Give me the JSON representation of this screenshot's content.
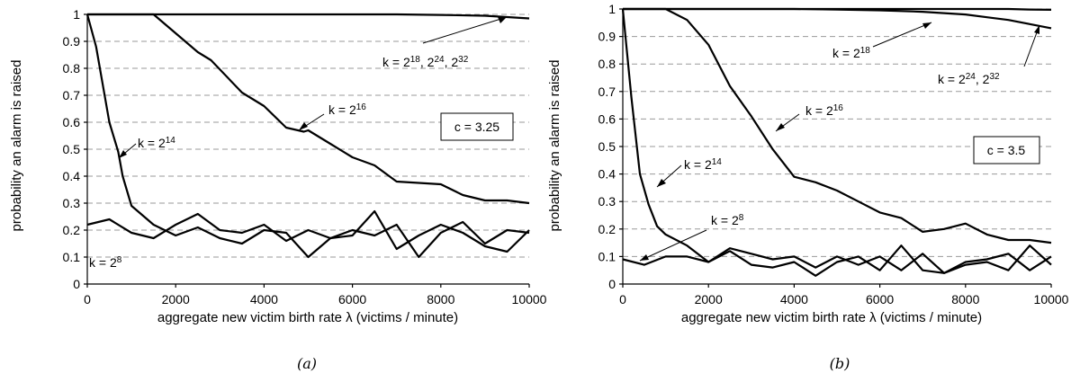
{
  "chart_data": [
    {
      "panel": "a",
      "type": "line",
      "caption": "(a)",
      "xlabel": "aggregate new victim birth rate λ (victims / minute)",
      "ylabel": "probability an alarm is raised",
      "xlim": [
        0,
        10000
      ],
      "ylim": [
        0,
        1
      ],
      "xticks": [
        "0",
        "2000",
        "4000",
        "6000",
        "8000",
        "10000"
      ],
      "yticks": [
        "0",
        "0.1",
        "0.2",
        "0.3",
        "0.4",
        "0.5",
        "0.6",
        "0.7",
        "0.8",
        "0.9",
        "1"
      ],
      "grid": "horizontal dashed",
      "box_label": "c = 3.25",
      "series": [
        {
          "name": "k = 2^18, 2^24, 2^32",
          "label_base": "k = 2",
          "label_exp": [
            "18",
            "24",
            "32"
          ],
          "x": [
            0,
            1000,
            2000,
            3000,
            4000,
            5000,
            6000,
            7000,
            8000,
            9000,
            9500,
            10000
          ],
          "y": [
            1,
            1,
            1,
            1,
            1,
            1,
            1,
            1,
            0.998,
            0.995,
            0.99,
            0.985
          ]
        },
        {
          "name": "k = 2^16",
          "label_base": "k = 2",
          "label_exp": [
            "16"
          ],
          "x": [
            0,
            1500,
            2000,
            2500,
            2800,
            3500,
            4000,
            4500,
            4900,
            5000,
            5500,
            6000,
            6500,
            7000,
            7500,
            8000,
            8500,
            9000,
            9500,
            10000
          ],
          "y": [
            1,
            1,
            0.93,
            0.86,
            0.83,
            0.71,
            0.66,
            0.58,
            0.565,
            0.57,
            0.52,
            0.47,
            0.44,
            0.38,
            0.375,
            0.37,
            0.33,
            0.31,
            0.31,
            0.3
          ]
        },
        {
          "name": "k = 2^14",
          "label_base": "k = 2",
          "label_exp": [
            "14"
          ],
          "x": [
            0,
            200,
            500,
            700,
            800,
            1000,
            1500,
            2000,
            2500,
            3000,
            3500,
            4000,
            4500,
            5000,
            5500,
            6000,
            6500,
            7000,
            7500,
            8000,
            8500,
            9000,
            9500,
            10000
          ],
          "y": [
            1,
            0.88,
            0.6,
            0.49,
            0.4,
            0.29,
            0.22,
            0.18,
            0.21,
            0.17,
            0.15,
            0.2,
            0.19,
            0.1,
            0.17,
            0.2,
            0.18,
            0.22,
            0.1,
            0.19,
            0.23,
            0.15,
            0.2,
            0.19
          ]
        },
        {
          "name": "k = 2^8",
          "label_base": "k = 2",
          "label_exp": [
            "8"
          ],
          "x": [
            0,
            500,
            1000,
            1500,
            2000,
            2500,
            3000,
            3500,
            4000,
            4500,
            5000,
            5500,
            6000,
            6500,
            7000,
            7500,
            8000,
            8500,
            9000,
            9500,
            10000
          ],
          "y": [
            0.22,
            0.24,
            0.19,
            0.17,
            0.22,
            0.26,
            0.2,
            0.19,
            0.22,
            0.16,
            0.2,
            0.17,
            0.18,
            0.27,
            0.13,
            0.18,
            0.22,
            0.19,
            0.14,
            0.12,
            0.2
          ]
        }
      ]
    },
    {
      "panel": "b",
      "type": "line",
      "caption": "(b)",
      "xlabel": "aggregate new victim birth rate λ (victims / minute)",
      "ylabel": "probability an alarm is raised",
      "xlim": [
        0,
        10000
      ],
      "ylim": [
        0,
        1
      ],
      "xticks": [
        "0",
        "2000",
        "4000",
        "6000",
        "8000",
        "10000"
      ],
      "yticks": [
        "0",
        "0.1",
        "0.2",
        "0.3",
        "0.4",
        "0.5",
        "0.6",
        "0.7",
        "0.8",
        "0.9",
        "1"
      ],
      "grid": "horizontal dashed",
      "box_label": "c = 3.5",
      "series": [
        {
          "name": "k = 2^18",
          "label_base": "k = 2",
          "label_exp": [
            "18"
          ],
          "x": [
            0,
            2000,
            4000,
            6000,
            7000,
            8000,
            9000,
            9500,
            10000
          ],
          "y": [
            1,
            1,
            1,
            1,
            1,
            1,
            1,
            0.998,
            0.997
          ]
        },
        {
          "name": "k = 2^24, 2^32",
          "label_base": "k = 2",
          "label_exp": [
            "24",
            "32"
          ],
          "x": [
            0,
            1000,
            2000,
            3000,
            4000,
            5000,
            6000,
            7000,
            7500,
            8000,
            8500,
            9000,
            9500,
            10000
          ],
          "y": [
            1,
            1,
            1,
            1,
            1,
            0.998,
            0.995,
            0.99,
            0.985,
            0.98,
            0.97,
            0.96,
            0.945,
            0.93
          ]
        },
        {
          "name": "k = 2^16",
          "label_base": "k = 2",
          "label_exp": [
            "16"
          ],
          "x": [
            0,
            1000,
            1500,
            2000,
            2500,
            3000,
            3500,
            4000,
            4500,
            5000,
            5500,
            6000,
            6500,
            7000,
            7500,
            8000,
            8500,
            9000,
            9500,
            10000
          ],
          "y": [
            1,
            1,
            0.96,
            0.87,
            0.72,
            0.61,
            0.49,
            0.39,
            0.37,
            0.34,
            0.3,
            0.26,
            0.24,
            0.19,
            0.2,
            0.22,
            0.18,
            0.16,
            0.16,
            0.15
          ]
        },
        {
          "name": "k = 2^14",
          "label_base": "k = 2",
          "label_exp": [
            "14"
          ],
          "x": [
            0,
            200,
            400,
            600,
            800,
            1000,
            1500,
            2000,
            2500,
            3000,
            3500,
            4000,
            4500,
            5000,
            5500,
            6000,
            6500,
            7000,
            7500,
            8000,
            8500,
            9000,
            9500,
            10000
          ],
          "y": [
            1,
            0.68,
            0.4,
            0.29,
            0.21,
            0.18,
            0.14,
            0.08,
            0.13,
            0.11,
            0.09,
            0.1,
            0.06,
            0.1,
            0.07,
            0.1,
            0.05,
            0.11,
            0.04,
            0.08,
            0.09,
            0.11,
            0.05,
            0.1
          ]
        },
        {
          "name": "k = 2^8",
          "label_base": "k = 2",
          "label_exp": [
            "8"
          ],
          "x": [
            0,
            500,
            1000,
            1500,
            2000,
            2500,
            3000,
            3500,
            4000,
            4500,
            5000,
            5500,
            6000,
            6500,
            7000,
            7500,
            8000,
            8500,
            9000,
            9500,
            10000
          ],
          "y": [
            0.09,
            0.07,
            0.1,
            0.1,
            0.08,
            0.12,
            0.07,
            0.06,
            0.08,
            0.03,
            0.08,
            0.1,
            0.05,
            0.14,
            0.05,
            0.04,
            0.07,
            0.08,
            0.05,
            0.14,
            0.07
          ]
        }
      ]
    }
  ]
}
